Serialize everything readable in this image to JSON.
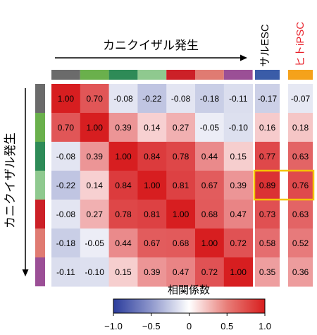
{
  "chart_data": {
    "type": "heatmap",
    "title": "カニクイザル発生",
    "ylabel": "カニクイザル発生",
    "colorbar_title": "相関係数",
    "colorbar_ticks": [
      "−1.0",
      "−0.5",
      "0",
      "0.5",
      "1.0"
    ],
    "colorbar_range": [
      -1.0,
      1.0
    ],
    "stage_colors": [
      "#6b6b6b",
      "#6ab04c",
      "#2e8b57",
      "#8fc98f",
      "#cc2027",
      "#e07b72",
      "#9b4f96"
    ],
    "extra_columns": [
      {
        "name": "サルESC",
        "color": "#3a5ca8",
        "label_color": "#000000"
      },
      {
        "name": "ヒトiPSC",
        "color": "#f5a21b",
        "label_color": "#e8202a"
      }
    ],
    "matrix": [
      [
        "1.00",
        "0.70",
        "-0.08",
        "-0.22",
        "-0.08",
        "-0.18",
        "-0.11"
      ],
      [
        "0.70",
        "1.00",
        "0.39",
        "0.14",
        "0.27",
        "-0.05",
        "-0.10"
      ],
      [
        "-0.08",
        "0.39",
        "1.00",
        "0.84",
        "0.78",
        "0.44",
        "0.15"
      ],
      [
        "-0.22",
        "0.14",
        "0.84",
        "1.00",
        "0.81",
        "0.67",
        "0.39"
      ],
      [
        "-0.08",
        "0.27",
        "0.78",
        "0.81",
        "1.00",
        "0.68",
        "0.47"
      ],
      [
        "-0.18",
        "-0.05",
        "0.44",
        "0.67",
        "0.68",
        "1.00",
        "0.72"
      ],
      [
        "-0.11",
        "-0.10",
        "0.15",
        "0.39",
        "0.47",
        "0.72",
        "1.00"
      ]
    ],
    "extra_values": [
      [
        "-0.17",
        "-0.07"
      ],
      [
        "0.16",
        "0.18"
      ],
      [
        "0.77",
        "0.63"
      ],
      [
        "0.89",
        "0.76"
      ],
      [
        "0.73",
        "0.63"
      ],
      [
        "0.58",
        "0.52"
      ],
      [
        "0.35",
        "0.36"
      ]
    ],
    "highlight_row": 3,
    "highlight_color": "#f5c400"
  }
}
